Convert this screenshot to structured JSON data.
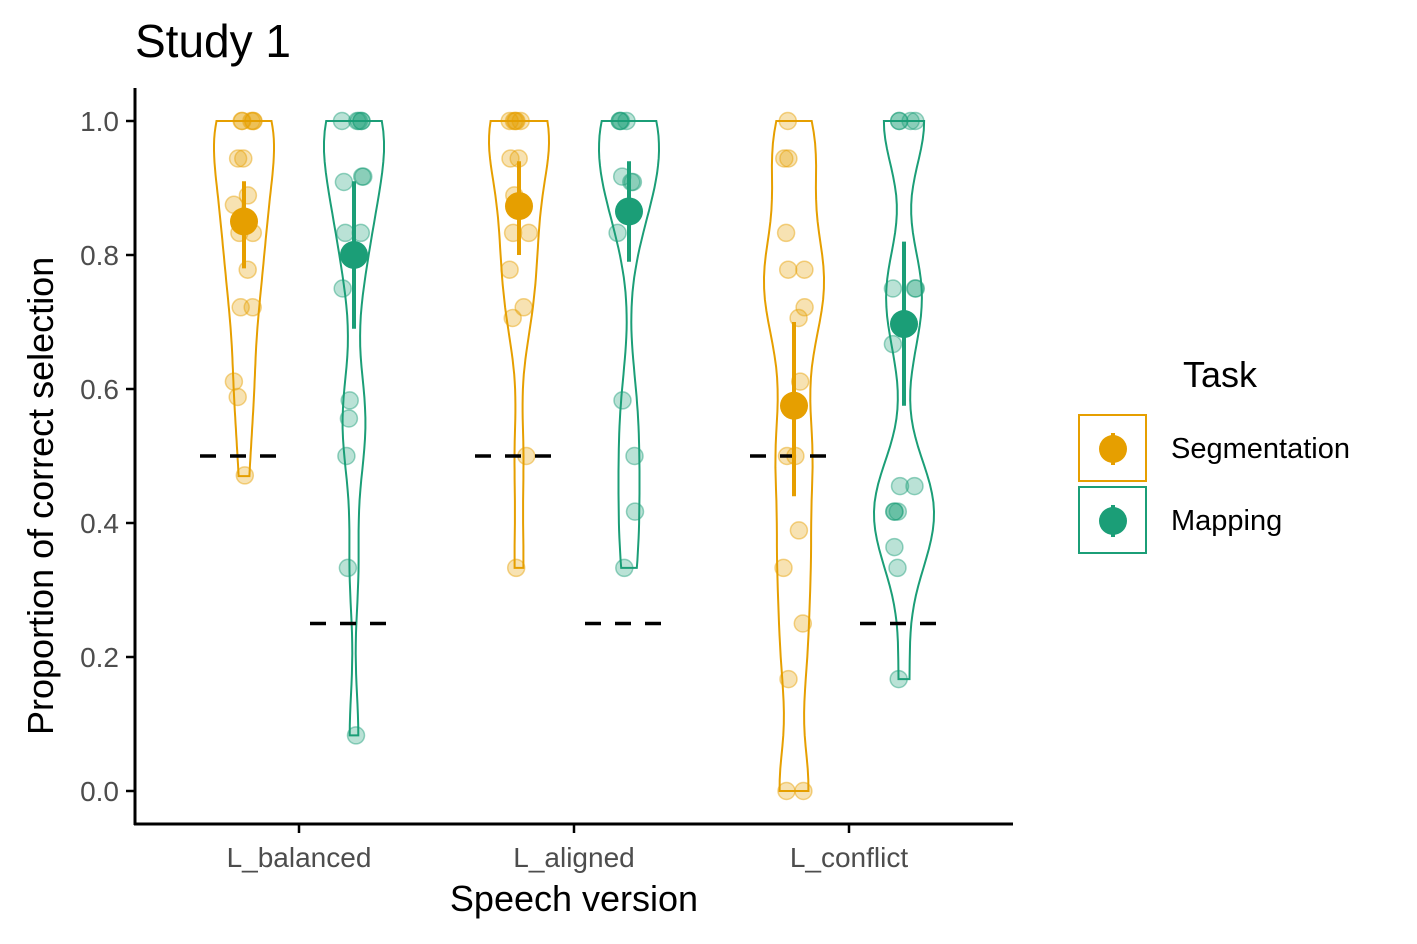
{
  "chart_data": {
    "type": "violin-dot",
    "title": "Study 1",
    "xlabel": "Speech version",
    "ylabel": "Proportion of correct selection",
    "categories": [
      "L_balanced",
      "L_aligned",
      "L_conflict"
    ],
    "yticks": [
      "0.0",
      "0.2",
      "0.4",
      "0.6",
      "0.8",
      "1.0"
    ],
    "ylim": [
      -0.05,
      1.05
    ],
    "grid": false,
    "legend": {
      "title": "Task",
      "position": "right",
      "entries": [
        "Segmentation",
        "Mapping"
      ]
    },
    "colors": {
      "Segmentation": "#E69F00",
      "Mapping": "#1B9E77"
    },
    "chance_levels": {
      "Segmentation": 0.5,
      "Mapping": 0.25
    },
    "series": [
      {
        "name": "Segmentation",
        "groups": [
          {
            "category": "L_balanced",
            "mean": 0.85,
            "ci": [
              0.78,
              0.91
            ],
            "violin_range": [
              0.47,
              1.0
            ],
            "points": [
              1.0,
              1.0,
              1.0,
              1.0,
              1.0,
              0.944,
              0.944,
              0.889,
              0.875,
              0.833,
              0.833,
              0.778,
              0.722,
              0.722,
              0.611,
              0.588,
              0.471
            ]
          },
          {
            "category": "L_aligned",
            "mean": 0.873,
            "ci": [
              0.8,
              0.94
            ],
            "violin_range": [
              0.333,
              1.0
            ],
            "points": [
              1.0,
              1.0,
              1.0,
              1.0,
              1.0,
              0.944,
              0.944,
              0.889,
              0.833,
              0.833,
              0.778,
              0.722,
              0.706,
              0.5,
              0.333
            ]
          },
          {
            "category": "L_conflict",
            "mean": 0.575,
            "ci": [
              0.44,
              0.7
            ],
            "violin_range": [
              0.0,
              1.0
            ],
            "points": [
              1.0,
              0.944,
              0.944,
              0.833,
              0.778,
              0.778,
              0.722,
              0.706,
              0.611,
              0.5,
              0.5,
              0.389,
              0.333,
              0.25,
              0.167,
              0.0,
              0.0
            ]
          }
        ]
      },
      {
        "name": "Mapping",
        "groups": [
          {
            "category": "L_balanced",
            "mean": 0.8,
            "ci": [
              0.69,
              0.91
            ],
            "violin_range": [
              0.083,
              1.0
            ],
            "points": [
              1.0,
              1.0,
              1.0,
              1.0,
              1.0,
              0.917,
              0.917,
              0.909,
              0.833,
              0.833,
              0.75,
              0.583,
              0.556,
              0.5,
              0.333,
              0.083
            ]
          },
          {
            "category": "L_aligned",
            "mean": 0.865,
            "ci": [
              0.79,
              0.94
            ],
            "violin_range": [
              0.333,
              1.0
            ],
            "points": [
              1.0,
              1.0,
              1.0,
              1.0,
              0.917,
              0.909,
              0.909,
              0.833,
              0.583,
              0.5,
              0.417,
              0.333
            ]
          },
          {
            "category": "L_conflict",
            "mean": 0.697,
            "ci": [
              0.575,
              0.82
            ],
            "violin_range": [
              0.167,
              1.0
            ],
            "points": [
              1.0,
              1.0,
              1.0,
              1.0,
              0.75,
              0.75,
              0.75,
              0.667,
              0.455,
              0.455,
              0.417,
              0.417,
              0.417,
              0.364,
              0.333,
              0.167
            ]
          }
        ]
      }
    ]
  }
}
